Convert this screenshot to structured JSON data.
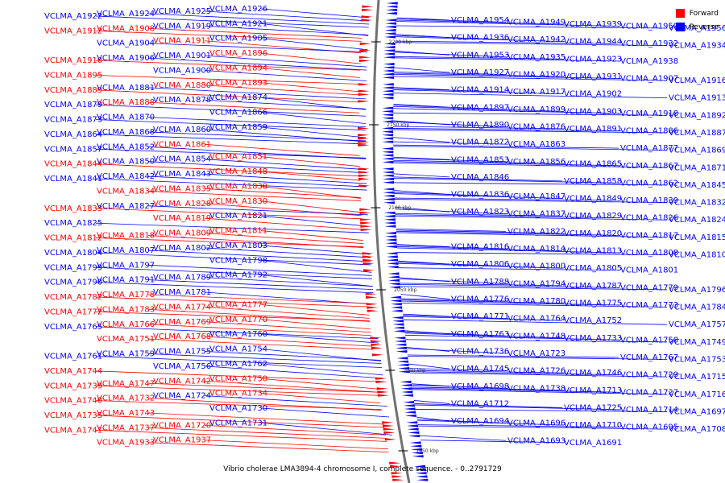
{
  "caption": "Vibrio cholerae LMA3894-4 chromosome I, complete sequence. - 0..2791729",
  "legend": [
    {
      "label": "Forward",
      "color": "#ff0000"
    },
    {
      "label": "Reverse",
      "color": "#0000ff"
    }
  ],
  "colors": {
    "forward": "#ff0000",
    "reverse": "#0000ff",
    "backbone": "#707070"
  },
  "ticks": [
    "2200 kbp",
    "2150 kbp",
    "2100 kbp",
    "2050 kbp",
    "2000 kbp",
    "1950 kbp"
  ],
  "left_labels": [
    [
      "VCLMA_A1926",
      "r"
    ],
    [
      "VCLMA_A1925",
      "r"
    ],
    [
      "VCLMA_A1924",
      "r"
    ],
    [
      "VCLMA_A1922",
      "r"
    ],
    [
      "VCLMA_A1921",
      "r"
    ],
    [
      "VCLMA_A1919",
      "r"
    ],
    [
      "VCLMA_A1908",
      "f"
    ],
    [
      "VCLMA_A1912",
      "f"
    ],
    [
      "VCLMA_A1905",
      "r"
    ],
    [
      "VCLMA_A1911",
      "f"
    ],
    [
      "VCLMA_A1904",
      "r"
    ],
    [
      "VCLMA_A1910",
      "f"
    ],
    [
      "VCLMA_A1896",
      "f"
    ],
    [
      "VCLMA_A1901",
      "r"
    ],
    [
      "VCLMA_A1906",
      "r"
    ],
    [
      "VCLMA_A1895",
      "f"
    ],
    [
      "VCLMA_A1894",
      "f"
    ],
    [
      "VCLMA_A1900",
      "r"
    ],
    [
      "VCLMA_A1881",
      "r"
    ],
    [
      "VCLMA_A1889",
      "f"
    ],
    [
      "VCLMA_A1893",
      "f"
    ],
    [
      "VCLMA_A1880",
      "f"
    ],
    [
      "VCLMA_A1888",
      "f"
    ],
    [
      "VCLMA_A1879",
      "r"
    ],
    [
      "VCLMA_A1874",
      "r"
    ],
    [
      "VCLMA_A1878",
      "r"
    ],
    [
      "VCLMA_A1870",
      "r"
    ],
    [
      "VCLMA_A1873",
      "r"
    ],
    [
      "VCLMA_A1866",
      "r"
    ],
    [
      "VCLMA_A1860",
      "r"
    ],
    [
      "VCLMA_A1868",
      "r"
    ],
    [
      "VCLMA_A1864",
      "r"
    ],
    [
      "VCLMA_A1859",
      "r"
    ],
    [
      "VCLMA_A1861",
      "f"
    ],
    [
      "VCLMA_A1852",
      "r"
    ],
    [
      "VCLMA_A1857",
      "r"
    ],
    [
      "VCLMA_A1851",
      "f"
    ],
    [
      "VCLMA_A1854",
      "r"
    ],
    [
      "VCLMA_A1850",
      "r"
    ],
    [
      "VCLMA_A1844",
      "f"
    ],
    [
      "VCLMA_A1848",
      "f"
    ],
    [
      "VCLMA_A1843",
      "r"
    ],
    [
      "VCLMA_A1842",
      "r"
    ],
    [
      "VCLMA_A1841",
      "r"
    ],
    [
      "VCLMA_A1838",
      "f"
    ],
    [
      "VCLMA_A1835",
      "f"
    ],
    [
      "VCLMA_A1834",
      "f"
    ],
    [
      "VCLMA_A1833",
      "f"
    ],
    [
      "VCLMA_A1830",
      "f"
    ],
    [
      "VCLMA_A1828",
      "f"
    ],
    [
      "VCLMA_A1827",
      "r"
    ],
    [
      "VCLMA_A1825",
      "r"
    ],
    [
      "VCLMA_A1821",
      "r"
    ],
    [
      "VCLMA_A1819",
      "f"
    ],
    [
      "VCLMA_A1818",
      "f"
    ],
    [
      "VCLMA_A1812",
      "f"
    ],
    [
      "VCLMA_A1811",
      "f"
    ],
    [
      "VCLMA_A1809",
      "f"
    ],
    [
      "VCLMA_A1807",
      "r"
    ],
    [
      "VCLMA_A1804",
      "r"
    ],
    [
      "VCLMA_A1803",
      "r"
    ],
    [
      "VCLMA_A1802",
      "r"
    ],
    [
      "VCLMA_A1797",
      "r"
    ],
    [
      "VCLMA_A1799",
      "r"
    ],
    [
      "VCLMA_A1798",
      "r"
    ],
    [
      "VCLMA_A1789",
      "r"
    ],
    [
      "VCLMA_A1791",
      "r"
    ],
    [
      "VCLMA_A1790",
      "r"
    ],
    [
      "VCLMA_A1792",
      "r"
    ],
    [
      "VCLMA_A1781",
      "r"
    ],
    [
      "VCLMA_A1778",
      "f"
    ],
    [
      "VCLMA_A1782",
      "f"
    ],
    [
      "VCLMA_A1777",
      "f"
    ],
    [
      "VCLMA_A1774",
      "f"
    ],
    [
      "VCLMA_A1783",
      "f"
    ],
    [
      "VCLMA_A1772",
      "f"
    ],
    [
      "VCLMA_A1770",
      "f"
    ],
    [
      "VCLMA_A1769",
      "f"
    ],
    [
      "VCLMA_A1766",
      "f"
    ],
    [
      "VCLMA_A1765",
      "r"
    ],
    [
      "VCLMA_A1760",
      "r"
    ],
    [
      "VCLMA_A1768",
      "f"
    ],
    [
      "VCLMA_A1751",
      "f"
    ],
    [
      "VCLMA_A1761",
      "r"
    ],
    [
      "VCLMA_A1754",
      "r"
    ],
    [
      "VCLMA_A1755",
      "r"
    ],
    [
      "VCLMA_A1759",
      "r"
    ],
    [
      "VCLMA_A1744",
      "f"
    ],
    [
      "VCLMA_A1762",
      "r"
    ],
    [
      "VCLMA_A1756",
      "r"
    ],
    [
      "VCLMA_A1747",
      "f"
    ],
    [
      "VCLMA_A1739",
      "f"
    ],
    [
      "VCLMA_A1750",
      "f"
    ],
    [
      "VCLMA_A1742",
      "f"
    ],
    [
      "VCLMA_A1732",
      "f"
    ],
    [
      "VCLMA_A1740",
      "f"
    ],
    [
      "VCLMA_A1734",
      "f"
    ],
    [
      "VCLMA_A1724",
      "r"
    ],
    [
      "VCLMA_A1743",
      "f"
    ],
    [
      "VCLMA_A1735",
      "f"
    ],
    [
      "VCLMA_A1730",
      "r"
    ],
    [
      "VCLMA_A1720",
      "f"
    ],
    [
      "VCLMA_A1737",
      "f"
    ],
    [
      "VCLMA_A1741",
      "f"
    ],
    [
      "VCLMA_A1731",
      "r"
    ],
    [
      "VCLMA_A1937",
      "f"
    ],
    [
      "VCLMA_A1933",
      "f"
    ]
  ],
  "right_labels": [
    "VCLMA_A1954",
    "VCLMA_A1949",
    "VCLMA_A1939",
    "VCLMA_A1950",
    "VCLMA_A1956",
    "VCLMA_A1936",
    "VCLMA_A1942",
    "VCLMA_A1944",
    "VCLMA_A1932",
    "VCLMA_A1934",
    "VCLMA_A1953",
    "VCLMA_A1935",
    "VCLMA_A1923",
    "VCLMA_A1938",
    "VCLMA_A1916",
    "VCLMA_A1927",
    "VCLMA_A1920",
    "VCLMA_A1931",
    "VCLMA_A1907",
    "VCLMA_A1913",
    "VCLMA_A1914",
    "VCLMA_A1917",
    "VCLMA_A1902",
    "VCLMA_A1918",
    "VCLMA_A1892",
    "VCLMA_A1897",
    "VCLMA_A1899",
    "VCLMA_A1903",
    "VCLMA_A1886",
    "VCLMA_A1887",
    "VCLMA_A1890",
    "VCLMA_A1876",
    "VCLMA_A1891",
    "VCLMA_A1877",
    "VCLMA_A1869",
    "VCLMA_A1872",
    "VCLMA_A1863",
    "VCLMA_A1865",
    "VCLMA_A1867",
    "VCLMA_A1871",
    "VCLMA_A1853",
    "VCLMA_A1856",
    "VCLMA_A1858",
    "VCLMA_A1862",
    "VCLMA_A1845",
    "VCLMA_A1846",
    "VCLMA_A1847",
    "VCLMA_A1849",
    "VCLMA_A1839",
    "VCLMA_A1832",
    "VCLMA_A1836",
    "VCLMA_A1837",
    "VCLMA_A1829",
    "VCLMA_A1826",
    "VCLMA_A1824",
    "VCLMA_A1823",
    "VCLMA_A1822",
    "VCLMA_A1820",
    "VCLMA_A1817",
    "VCLMA_A1815",
    "VCLMA_A1816",
    "VCLMA_A1814",
    "VCLMA_A1813",
    "VCLMA_A1808",
    "VCLMA_A1810",
    "VCLMA_A1806",
    "VCLMA_A1800",
    "VCLMA_A1805",
    "VCLMA_A1801",
    "VCLMA_A1796",
    "VCLMA_A1788",
    "VCLMA_A1794",
    "VCLMA_A1787",
    "VCLMA_A1779",
    "VCLMA_A1784",
    "VCLMA_A1776",
    "VCLMA_A1780",
    "VCLMA_A1775",
    "VCLMA_A1773",
    "VCLMA_A1757",
    "VCLMA_A1771",
    "VCLMA_A1764",
    "VCLMA_A1752",
    "VCLMA_A1758",
    "VCLMA_A1749",
    "VCLMA_A1763",
    "VCLMA_A1748",
    "VCLMA_A1733",
    "VCLMA_A1767",
    "VCLMA_A1753",
    "VCLMA_A1736",
    "VCLMA_A1723",
    "VCLMA_A1746",
    "VCLMA_A1729",
    "VCLMA_A1715",
    "VCLMA_A1745",
    "VCLMA_A1726",
    "VCLMA_A1713",
    "VCLMA_A1727",
    "VCLMA_A1716",
    "VCLMA_A1698",
    "VCLMA_A1738",
    "VCLMA_A1725",
    "VCLMA_A1714",
    "VCLMA_A1697",
    "VCLMA_A1712",
    "VCLMA_A1696",
    "VCLMA_A1710",
    "VCLMA_A1695",
    "VCLMA_A1708",
    "VCLMA_A1694",
    "VCLMA_A1693",
    "VCLMA_A1691"
  ]
}
